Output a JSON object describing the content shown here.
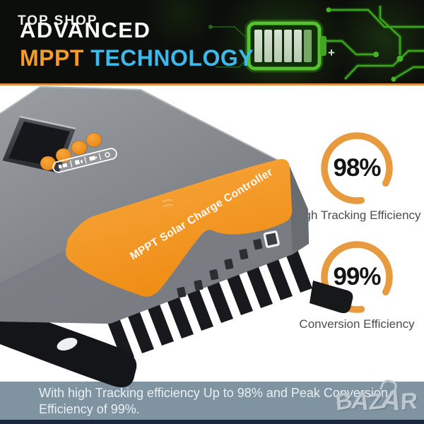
{
  "brand": {
    "logo_text": "TOP SHOP"
  },
  "header": {
    "title_line1": "ADVANCED",
    "title_line2_accent": "MPPT",
    "title_line2_rest": " TECHNOLOGY"
  },
  "product": {
    "band_label": "MPPT Solar Charge Controller"
  },
  "stats": [
    {
      "value": "98%",
      "label": "High Tracking Efficiency"
    },
    {
      "value": "99%",
      "label": "Conversion Efficiency"
    }
  ],
  "footer": {
    "caption_line1": "With high Tracking efficiency Up to 98% and Peak Conversion",
    "caption_line2": "Efficiency of 99%.",
    "watermark": "BAZAR"
  },
  "colors": {
    "accent_orange": "#F59B2A",
    "accent_blue": "#3CB9E9",
    "band_orange": "#F0931F",
    "ring_orange": "#E89A3F",
    "divider_orange": "#DD8F3E",
    "banner_bg": "#8093A0",
    "circuit_green": "#46B524",
    "header_bg": "#0C0E0B"
  }
}
